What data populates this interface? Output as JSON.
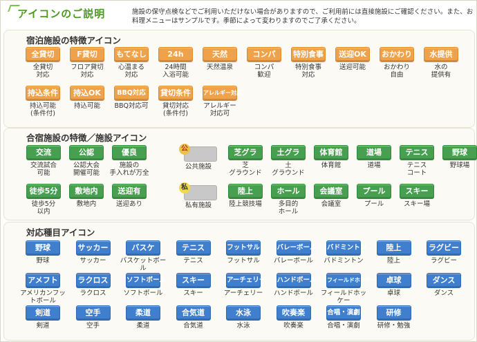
{
  "header": {
    "title": "アイコンのご説明",
    "note": "施設の保守点検などでご利用いただけない場合がありますので、ご利用前には直接施設にご確認ください。また、お料理メニューはサンプルです。季節によって変わりますのでご了承ください。"
  },
  "colors": {
    "orange": "#f0a24a",
    "green": "#47a050",
    "blue": "#3f7fce",
    "title_green": "#4a9a1e"
  },
  "stay": {
    "title": "宿泊施設の特徴アイコン",
    "items": [
      {
        "badge": "全貸切",
        "label": "全貸切\n対応"
      },
      {
        "badge": "F貸切",
        "label": "フロア貸切\n対応"
      },
      {
        "badge": "もてなし",
        "label": "心温まる\n対応"
      },
      {
        "badge": "24h",
        "label": "24時間\n入浴可能"
      },
      {
        "badge": "天然",
        "label": "天然温泉"
      },
      {
        "badge": "コンパ",
        "label": "コンパ\n歓迎"
      },
      {
        "badge": "特別食事",
        "label": "特別食事\n対応"
      },
      {
        "badge": "送迎OK",
        "label": "送迎可能"
      },
      {
        "badge": "おかわり",
        "label": "おかわり\n自由"
      },
      {
        "badge": "水提供",
        "label": "水の\n提供有"
      },
      {
        "badge": "持込条件",
        "label": "持込可能\n(条件付)"
      },
      {
        "badge": "持込OK",
        "label": "持込可能"
      },
      {
        "badge": "BBQ対応",
        "label": "BBQ対応可"
      },
      {
        "badge": "貸切条件",
        "label": "貸切対応\n(条件付)"
      },
      {
        "badge": "アレルギー対応",
        "label": "アレルギー\n対応可"
      }
    ]
  },
  "camp": {
    "title": "合宿施設の特徴／施設アイコン",
    "left": [
      {
        "badge": "交流",
        "label": "交流試合\n可能"
      },
      {
        "badge": "公認",
        "label": "公認大会\n開催可能"
      },
      {
        "badge": "優良",
        "label": "施設の\n手入れが万全"
      },
      {
        "badge": "徒歩5分",
        "label": "徒歩5分\n以内"
      },
      {
        "badge": "敷地内",
        "label": "敷地内"
      },
      {
        "badge": "送迎有",
        "label": "送迎あり"
      }
    ],
    "public": {
      "kanji": "公",
      "label": "公共施設"
    },
    "private": {
      "kanji": "私",
      "label": "私有施設"
    },
    "right": [
      {
        "badge": "芝グラ",
        "label": "芝\nグラウンド"
      },
      {
        "badge": "土グラ",
        "label": "土\nグラウンド"
      },
      {
        "badge": "体育館",
        "label": "体育館"
      },
      {
        "badge": "道場",
        "label": "道場"
      },
      {
        "badge": "テニス",
        "label": "テニス\nコート"
      },
      {
        "badge": "野球",
        "label": "野球場"
      },
      {
        "badge": "陸上",
        "label": "陸上競技場"
      },
      {
        "badge": "ホール",
        "label": "多目的\nホール"
      },
      {
        "badge": "会議室",
        "label": "会議室"
      },
      {
        "badge": "プール",
        "label": "プール"
      },
      {
        "badge": "スキー",
        "label": "スキー場"
      }
    ]
  },
  "sports": {
    "title": "対応種目アイコン",
    "items": [
      {
        "badge": "野球",
        "label": "野球"
      },
      {
        "badge": "サッカー",
        "label": "サッカー"
      },
      {
        "badge": "バスケ",
        "label": "バスケットボール"
      },
      {
        "badge": "テニス",
        "label": "テニス"
      },
      {
        "badge": "フットサル",
        "label": "フットサル"
      },
      {
        "badge": "バレーボール",
        "label": "バレーボール"
      },
      {
        "badge": "バドミントン",
        "label": "バドミントン"
      },
      {
        "badge": "陸上",
        "label": "陸上"
      },
      {
        "badge": "ラグビー",
        "label": "ラグビー"
      },
      {
        "badge": "アメフト",
        "label": "アメリカンフットボール"
      },
      {
        "badge": "ラクロス",
        "label": "ラクロス"
      },
      {
        "badge": "ソフトボール",
        "label": "ソフトボール"
      },
      {
        "badge": "スキー",
        "label": "スキー"
      },
      {
        "badge": "アーチェリー",
        "label": "アーチェリー"
      },
      {
        "badge": "ハンドボール",
        "label": "ハンドボール"
      },
      {
        "badge": "フィールドホッケー",
        "label": "フィールドホッケー"
      },
      {
        "badge": "卓球",
        "label": "卓球"
      },
      {
        "badge": "ダンス",
        "label": "ダンス"
      },
      {
        "badge": "剣道",
        "label": "剣道"
      },
      {
        "badge": "空手",
        "label": "空手"
      },
      {
        "badge": "柔道",
        "label": "柔道"
      },
      {
        "badge": "合気道",
        "label": "合気道"
      },
      {
        "badge": "水泳",
        "label": "水泳"
      },
      {
        "badge": "吹奏楽",
        "label": "吹奏楽"
      },
      {
        "badge": "合唱・演劇",
        "label": "合唱・演劇"
      },
      {
        "badge": "研修",
        "label": "研修・勉強"
      }
    ]
  }
}
